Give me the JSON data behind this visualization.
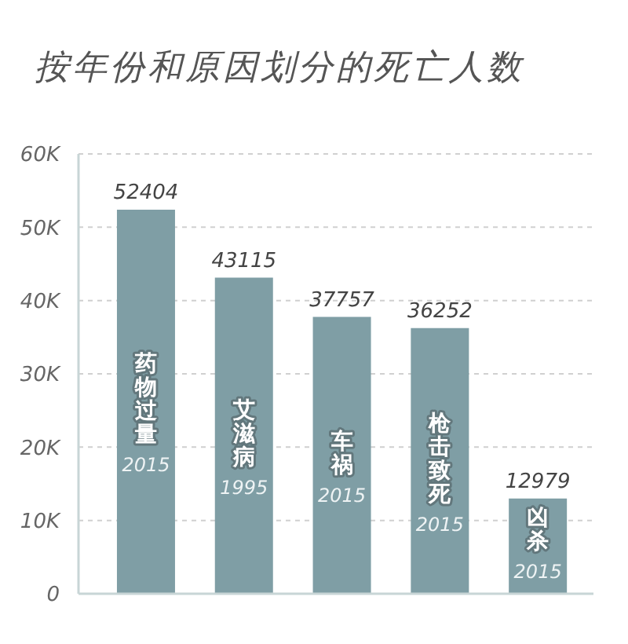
{
  "chart_data": {
    "type": "bar",
    "title": "按年份和原因划分的死亡人数",
    "categories": [
      "药物过量",
      "艾滋病",
      "车祸",
      "枪击致死",
      "凶杀"
    ],
    "values": [
      52404,
      43115,
      37757,
      36252,
      12979
    ],
    "color": "#7f9ea5",
    "ylim": [
      0,
      60000
    ],
    "yticks": [
      0,
      {
        "value": 10000,
        "label": "10K"
      },
      {
        "value": 20000,
        "label": "20K"
      },
      {
        "value": 30000,
        "label": "30K"
      },
      {
        "value": 40000,
        "label": "40K"
      },
      {
        "value": 50000,
        "label": "50K"
      },
      {
        "value": 60000,
        "label": "60K"
      }
    ],
    "grid": "y",
    "data_labels": true,
    "annotations": [
      "2015",
      "1995",
      "2015",
      "2015",
      "2015"
    ]
  }
}
